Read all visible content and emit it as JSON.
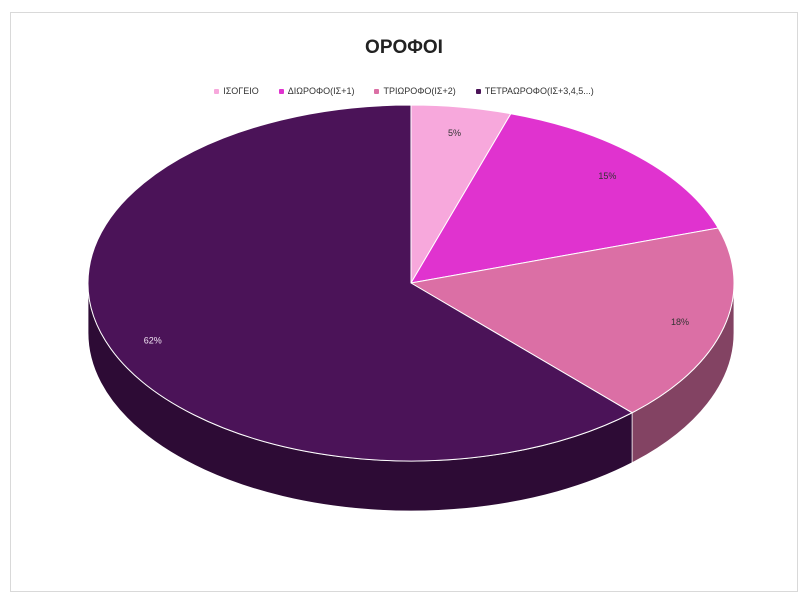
{
  "chart_data": {
    "type": "pie",
    "title": "ΟΡΟΦΟΙ",
    "legend_position": "top",
    "three_d": true,
    "categories": [
      "ΙΣΟΓΕΙΟ",
      "ΔΙΩΡΟΦΟ(ΙΣ+1)",
      "ΤΡΙΩΡΟΦΟ(ΙΣ+2)",
      "ΤΕΤΡΑΩΡΟΦΟ(ΙΣ+3,4,5...)"
    ],
    "values": [
      5,
      15,
      18,
      62
    ],
    "data_labels": [
      "5%",
      "15%",
      "18%",
      "62%"
    ],
    "colors": [
      "#f7a8dc",
      "#e033cf",
      "#db6fa5",
      "#4b1358"
    ]
  }
}
